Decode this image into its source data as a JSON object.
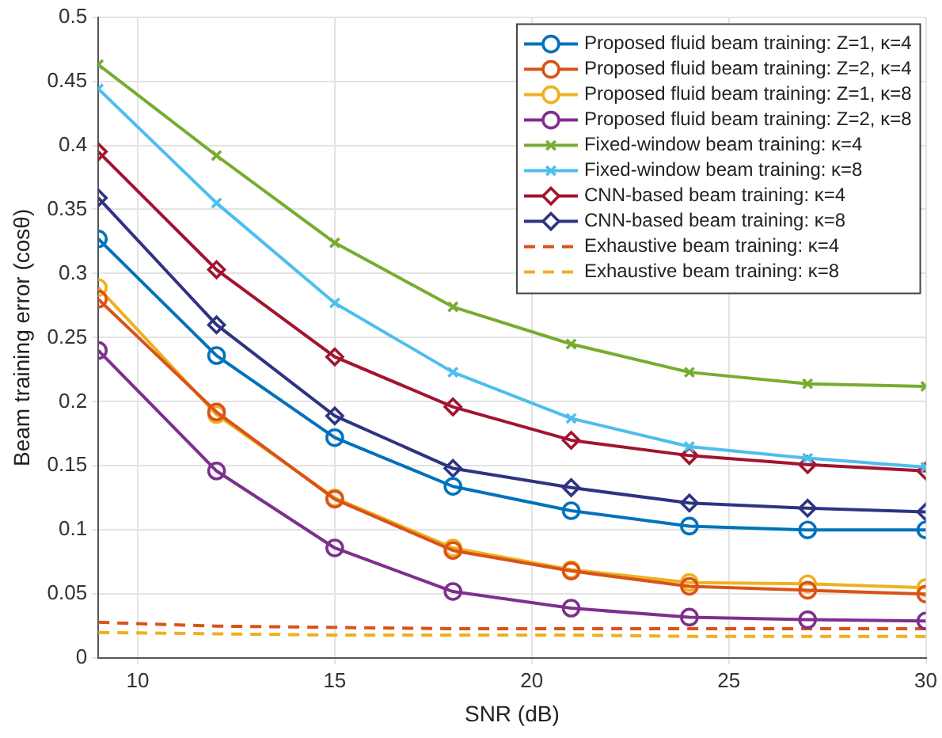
{
  "chart_data": {
    "type": "line",
    "xlabel": "SNR (dB)",
    "ylabel": "Beam training error (cosθ)",
    "x": [
      9,
      12,
      15,
      18,
      21,
      24,
      27,
      30
    ],
    "xlim": [
      9,
      30
    ],
    "xticks": [
      10,
      15,
      20,
      25,
      30
    ],
    "ylim": [
      0,
      0.5
    ],
    "yticks": [
      0,
      0.05,
      0.1,
      0.15,
      0.2,
      0.25,
      0.3,
      0.35,
      0.4,
      0.45,
      0.5
    ],
    "grid": true,
    "legend": "top right",
    "series": [
      {
        "name": "Proposed fluid beam training: Z=1, κ=4",
        "color": "#0072bd",
        "marker": "circle",
        "line_style": "solid",
        "values": [
          0.327,
          0.236,
          0.172,
          0.134,
          0.115,
          0.103,
          0.1,
          0.1
        ]
      },
      {
        "name": "Proposed fluid beam training: Z=2, κ=4",
        "color": "#d95319",
        "marker": "circle",
        "line_style": "solid",
        "values": [
          0.28,
          0.192,
          0.124,
          0.084,
          0.068,
          0.056,
          0.053,
          0.05
        ]
      },
      {
        "name": "Proposed fluid beam training: Z=1, κ=8",
        "color": "#edb120",
        "marker": "circle",
        "line_style": "solid",
        "values": [
          0.289,
          0.19,
          0.125,
          0.086,
          0.069,
          0.059,
          0.058,
          0.055
        ]
      },
      {
        "name": "Proposed fluid beam training: Z=2, κ=8",
        "color": "#7e2f8e",
        "marker": "circle",
        "line_style": "solid",
        "values": [
          0.24,
          0.146,
          0.086,
          0.052,
          0.039,
          0.032,
          0.03,
          0.029
        ]
      },
      {
        "name": "Fixed-window beam training: κ=4",
        "color": "#77ac30",
        "marker": "cross",
        "line_style": "solid",
        "values": [
          0.463,
          0.392,
          0.324,
          0.274,
          0.245,
          0.223,
          0.214,
          0.212
        ]
      },
      {
        "name": "Fixed-window beam training: κ=8",
        "color": "#4dbeee",
        "marker": "cross",
        "line_style": "solid",
        "values": [
          0.444,
          0.355,
          0.277,
          0.223,
          0.187,
          0.165,
          0.156,
          0.149
        ]
      },
      {
        "name": "CNN-based beam training: κ=4",
        "color": "#a2142f",
        "marker": "diamond",
        "line_style": "solid",
        "values": [
          0.395,
          0.303,
          0.235,
          0.196,
          0.17,
          0.158,
          0.151,
          0.146
        ]
      },
      {
        "name": "CNN-based beam training: κ=8",
        "color": "#2e3383",
        "marker": "diamond",
        "line_style": "solid",
        "values": [
          0.359,
          0.26,
          0.189,
          0.148,
          0.133,
          0.121,
          0.117,
          0.114
        ]
      },
      {
        "name": "Exhaustive beam training: κ=4",
        "color": "#d95319",
        "marker": "none",
        "line_style": "dashed",
        "values": [
          0.028,
          0.025,
          0.024,
          0.023,
          0.023,
          0.023,
          0.023,
          0.023
        ]
      },
      {
        "name": "Exhaustive beam training: κ=8",
        "color": "#edb120",
        "marker": "none",
        "line_style": "dashed",
        "values": [
          0.02,
          0.019,
          0.018,
          0.018,
          0.018,
          0.017,
          0.017,
          0.017
        ]
      }
    ]
  }
}
